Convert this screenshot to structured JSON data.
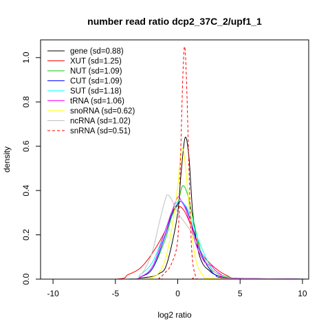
{
  "chart_data": {
    "type": "line",
    "title": "number read ratio dcp2_37C_2/upf1_1",
    "xlabel": "log2 ratio",
    "ylabel": "density",
    "xlim": [
      -11,
      10.5
    ],
    "ylim": [
      0,
      1.08
    ],
    "x_ticks": [
      -10,
      -5,
      0,
      5,
      10
    ],
    "y_ticks": [
      0.0,
      0.2,
      0.4,
      0.6,
      0.8,
      1.0
    ],
    "x_tick_labels": [
      "-10",
      "-5",
      "0",
      "5",
      "10"
    ],
    "y_tick_labels": [
      "0.0",
      "0.2",
      "0.4",
      "0.6",
      "0.8",
      "1.0"
    ],
    "grid": false,
    "legend_position": "top-left",
    "series": [
      {
        "name": "gene (sd=0.88)",
        "color": "#000000",
        "dash": "solid",
        "points": [
          [
            -11,
            0
          ],
          [
            -4,
            0
          ],
          [
            -3,
            0.005
          ],
          [
            -2,
            0.012
          ],
          [
            -1.5,
            0.025
          ],
          [
            -1,
            0.05
          ],
          [
            -0.5,
            0.15
          ],
          [
            0,
            0.3
          ],
          [
            0.3,
            0.5
          ],
          [
            0.6,
            0.64
          ],
          [
            0.9,
            0.55
          ],
          [
            1.2,
            0.3
          ],
          [
            1.6,
            0.14
          ],
          [
            2,
            0.07
          ],
          [
            2.5,
            0.04
          ],
          [
            3,
            0.02
          ],
          [
            4,
            0.005
          ],
          [
            5,
            0.002
          ],
          [
            10.5,
            0
          ]
        ]
      },
      {
        "name": "XUT (sd=1.25)",
        "color": "#ff0000",
        "dash": "solid",
        "points": [
          [
            -11,
            0
          ],
          [
            -5,
            0
          ],
          [
            -4,
            0.02
          ],
          [
            -3,
            0.05
          ],
          [
            -2,
            0.12
          ],
          [
            -1,
            0.22
          ],
          [
            -0.5,
            0.3
          ],
          [
            0,
            0.33
          ],
          [
            0.5,
            0.31
          ],
          [
            1,
            0.25
          ],
          [
            1.5,
            0.18
          ],
          [
            2,
            0.11
          ],
          [
            3,
            0.05
          ],
          [
            4,
            0.015
          ],
          [
            5,
            0.003
          ],
          [
            10.5,
            0
          ]
        ]
      },
      {
        "name": "NUT (sd=1.09)",
        "color": "#00cc00",
        "dash": "solid",
        "points": [
          [
            -11,
            0
          ],
          [
            -4,
            0
          ],
          [
            -3,
            0.01
          ],
          [
            -2,
            0.05
          ],
          [
            -1,
            0.18
          ],
          [
            -0.5,
            0.28
          ],
          [
            0,
            0.34
          ],
          [
            0.3,
            0.41
          ],
          [
            0.5,
            0.42
          ],
          [
            0.8,
            0.38
          ],
          [
            1.2,
            0.28
          ],
          [
            1.6,
            0.18
          ],
          [
            2,
            0.1
          ],
          [
            2.5,
            0.05
          ],
          [
            3,
            0.03
          ],
          [
            4,
            0.01
          ],
          [
            5,
            0.002
          ],
          [
            10.5,
            0
          ]
        ]
      },
      {
        "name": "CUT (sd=1.09)",
        "color": "#0000ff",
        "dash": "solid",
        "points": [
          [
            -11,
            0
          ],
          [
            -4,
            0
          ],
          [
            -3,
            0.01
          ],
          [
            -2,
            0.05
          ],
          [
            -1,
            0.2
          ],
          [
            -0.5,
            0.29
          ],
          [
            0,
            0.34
          ],
          [
            0.3,
            0.35
          ],
          [
            0.6,
            0.33
          ],
          [
            1,
            0.27
          ],
          [
            1.5,
            0.17
          ],
          [
            2,
            0.1
          ],
          [
            2.5,
            0.05
          ],
          [
            3,
            0.02
          ],
          [
            4,
            0.005
          ],
          [
            10.5,
            0
          ]
        ]
      },
      {
        "name": "SUT (sd=1.18)",
        "color": "#00ffff",
        "dash": "solid",
        "points": [
          [
            -11,
            0
          ],
          [
            -4,
            0
          ],
          [
            -3,
            0.02
          ],
          [
            -2,
            0.08
          ],
          [
            -1,
            0.22
          ],
          [
            -0.5,
            0.3
          ],
          [
            0,
            0.35
          ],
          [
            0.5,
            0.34
          ],
          [
            1,
            0.29
          ],
          [
            1.5,
            0.2
          ],
          [
            2,
            0.13
          ],
          [
            2.5,
            0.07
          ],
          [
            3,
            0.03
          ],
          [
            4,
            0.008
          ],
          [
            5,
            0.001
          ],
          [
            10.5,
            0
          ]
        ]
      },
      {
        "name": "tRNA (sd=1.06)",
        "color": "#ff00ff",
        "dash": "solid",
        "points": [
          [
            -11,
            0
          ],
          [
            -4,
            0
          ],
          [
            -3,
            0.01
          ],
          [
            -2,
            0.06
          ],
          [
            -1,
            0.22
          ],
          [
            -0.5,
            0.3
          ],
          [
            0,
            0.37
          ],
          [
            0.3,
            0.35
          ],
          [
            0.6,
            0.32
          ],
          [
            1,
            0.25
          ],
          [
            1.5,
            0.15
          ],
          [
            2,
            0.09
          ],
          [
            2.3,
            0.07
          ],
          [
            2.7,
            0.06
          ],
          [
            3,
            0.04
          ],
          [
            3.5,
            0.02
          ],
          [
            4,
            0.005
          ],
          [
            10.5,
            0
          ]
        ]
      },
      {
        "name": "snoRNA (sd=0.62)",
        "color": "#ffff00",
        "dash": "solid",
        "points": [
          [
            -11,
            0
          ],
          [
            -3,
            0
          ],
          [
            -2,
            0.01
          ],
          [
            -1.5,
            0.03
          ],
          [
            -1,
            0.09
          ],
          [
            -0.5,
            0.22
          ],
          [
            0,
            0.42
          ],
          [
            0.2,
            0.55
          ],
          [
            0.4,
            0.59
          ],
          [
            0.6,
            0.52
          ],
          [
            1,
            0.28
          ],
          [
            1.4,
            0.1
          ],
          [
            2,
            0.02
          ],
          [
            3,
            0.002
          ],
          [
            10.5,
            0
          ]
        ]
      },
      {
        "name": "ncRNA (sd=1.02)",
        "color": "#bebebe",
        "dash": "solid",
        "points": [
          [
            -11,
            0
          ],
          [
            -4,
            0
          ],
          [
            -3,
            0.02
          ],
          [
            -2.5,
            0.06
          ],
          [
            -2,
            0.13
          ],
          [
            -1.5,
            0.25
          ],
          [
            -1,
            0.36
          ],
          [
            -0.8,
            0.38
          ],
          [
            -0.5,
            0.36
          ],
          [
            0,
            0.3
          ],
          [
            0.5,
            0.26
          ],
          [
            1,
            0.22
          ],
          [
            1.5,
            0.17
          ],
          [
            2,
            0.11
          ],
          [
            2.5,
            0.06
          ],
          [
            3,
            0.03
          ],
          [
            4,
            0.008
          ],
          [
            5,
            0.002
          ],
          [
            10.5,
            0
          ]
        ]
      },
      {
        "name": "snRNA (sd=0.51)",
        "color": "#ff0000",
        "dash": "dashed",
        "points": [
          [
            -11,
            0
          ],
          [
            -2,
            0
          ],
          [
            -1.5,
            0.005
          ],
          [
            -1,
            0.03
          ],
          [
            -0.5,
            0.07
          ],
          [
            0,
            0.18
          ],
          [
            0.2,
            0.5
          ],
          [
            0.4,
            0.9
          ],
          [
            0.55,
            1.05
          ],
          [
            0.7,
            0.9
          ],
          [
            0.9,
            0.5
          ],
          [
            1.1,
            0.15
          ],
          [
            1.4,
            0.02
          ],
          [
            2,
            0
          ],
          [
            10.5,
            0
          ]
        ]
      }
    ]
  }
}
